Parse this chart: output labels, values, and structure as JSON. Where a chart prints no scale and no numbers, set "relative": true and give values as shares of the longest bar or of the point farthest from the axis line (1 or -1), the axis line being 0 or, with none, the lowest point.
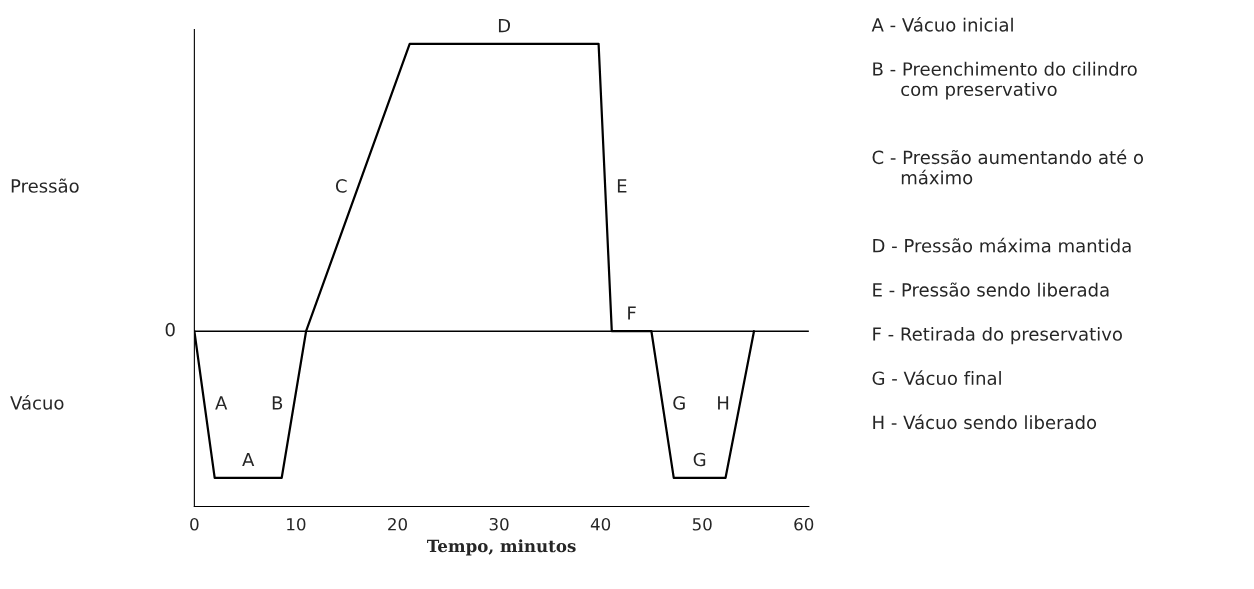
{
  "chart_data": {
    "type": "line",
    "relative": true,
    "xlabel": "Tempo, minutos",
    "x": [
      0,
      2,
      8.6,
      11,
      21.2,
      39.8,
      41.1,
      45,
      47.2,
      52.3,
      55.1
    ],
    "series": [
      {
        "color": "#000000",
        "values": [
          0,
          -0.51,
          -0.51,
          0,
          1,
          1,
          0,
          0,
          -0.51,
          -0.51,
          0
        ]
      }
    ],
    "xlim": [
      0,
      60.5
    ],
    "xticks": [
      0,
      10,
      20,
      30,
      40,
      50,
      60
    ],
    "ref_lines": [
      {
        "axis": "y",
        "value": 0,
        "label": "0",
        "color": "#000000"
      }
    ],
    "grid": false,
    "annotations": [
      "Pressão",
      "Vácuo",
      "A",
      "A",
      "B",
      "C",
      "D",
      "E",
      "F",
      "G",
      "G",
      "H",
      "A - Vácuo inicial",
      "B - Preenchimento do cilindro\n     com preservativo",
      "C - Pressão aumentando até o\n     máximo",
      "D - Pressão máxima mantida",
      "E - Pressão sendo liberada",
      "F - Retirada do preservativo",
      "G - Vácuo final",
      "H - Vácuo sendo liberado"
    ]
  }
}
